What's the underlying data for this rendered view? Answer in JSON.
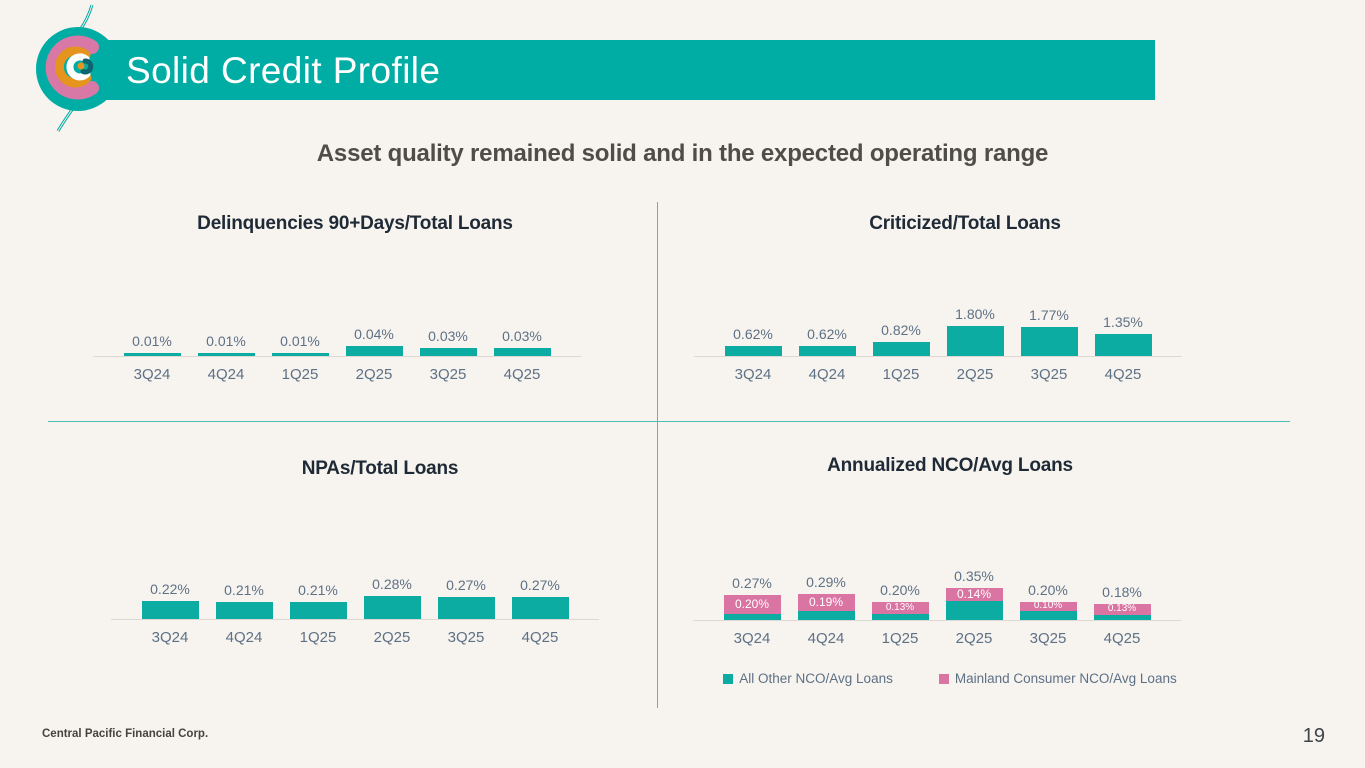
{
  "slide": {
    "title": "Solid Credit Profile",
    "subtitle": "Asset quality remained solid and in the expected operating range",
    "footer": "Central Pacific Financial Corp.",
    "page_number": "19",
    "logo": "central-pacific-bank-logo"
  },
  "colors": {
    "background": "#F7F3EE",
    "header_bar": "#00ADA4",
    "teal": "#0CACA2",
    "pink": "#DA74A2",
    "divider": "#4ABFB5",
    "axis_line": "#DDD8D1",
    "value_label": "#5D7186",
    "chart_title": "#1F2A37"
  },
  "chart_data": [
    {
      "id": "delinquencies",
      "type": "bar",
      "title": "Delinquencies 90+Days/Total Loans",
      "categories": [
        "3Q24",
        "4Q24",
        "1Q25",
        "2Q25",
        "3Q25",
        "4Q25"
      ],
      "values": [
        0.01,
        0.01,
        0.01,
        0.04,
        0.03,
        0.03
      ],
      "labels": [
        "0.01%",
        "0.01%",
        "0.01%",
        "0.04%",
        "0.03%",
        "0.03%"
      ],
      "unit": "%",
      "grid": false,
      "bar_color": "#0CACA2"
    },
    {
      "id": "criticized",
      "type": "bar",
      "title": "Criticized/Total Loans",
      "categories": [
        "3Q24",
        "4Q24",
        "1Q25",
        "2Q25",
        "3Q25",
        "4Q25"
      ],
      "values": [
        0.62,
        0.62,
        0.82,
        1.8,
        1.77,
        1.35
      ],
      "labels": [
        "0.62%",
        "0.62%",
        "0.82%",
        "1.80%",
        "1.77%",
        "1.35%"
      ],
      "unit": "%",
      "grid": false,
      "bar_color": "#0CACA2"
    },
    {
      "id": "npas",
      "type": "bar",
      "title": "NPAs/Total Loans",
      "categories": [
        "3Q24",
        "4Q24",
        "1Q25",
        "2Q25",
        "3Q25",
        "4Q25"
      ],
      "values": [
        0.22,
        0.21,
        0.21,
        0.28,
        0.27,
        0.27
      ],
      "labels": [
        "0.22%",
        "0.21%",
        "0.21%",
        "0.28%",
        "0.27%",
        "0.27%"
      ],
      "unit": "%",
      "grid": false,
      "bar_color": "#0CACA2"
    },
    {
      "id": "nco",
      "type": "stacked-bar",
      "title": "Annualized NCO/Avg Loans",
      "categories": [
        "3Q24",
        "4Q24",
        "1Q25",
        "2Q25",
        "3Q25",
        "4Q25"
      ],
      "series": [
        {
          "name": "All Other NCO/Avg Loans",
          "color": "#0CACA2",
          "values": [
            0.07,
            0.1,
            0.07,
            0.21,
            0.1,
            0.05
          ]
        },
        {
          "name": "Mainland Consumer NCO/Avg Loans",
          "color": "#DA74A2",
          "values": [
            0.2,
            0.19,
            0.13,
            0.14,
            0.1,
            0.13
          ],
          "labels": [
            "0.20%",
            "0.19%",
            "0.13%",
            "0.14%",
            "0.10%",
            "0.13%"
          ]
        }
      ],
      "totals": [
        0.27,
        0.29,
        0.2,
        0.35,
        0.2,
        0.18
      ],
      "total_labels": [
        "0.27%",
        "0.29%",
        "0.20%",
        "0.35%",
        "0.20%",
        "0.18%"
      ],
      "unit": "%",
      "grid": false,
      "legend_position": "bottom",
      "legend": [
        {
          "label": "All Other NCO/Avg Loans",
          "color": "#0CACA2"
        },
        {
          "label": "Mainland Consumer NCO/Avg Loans",
          "color": "#DA74A2"
        }
      ]
    }
  ]
}
